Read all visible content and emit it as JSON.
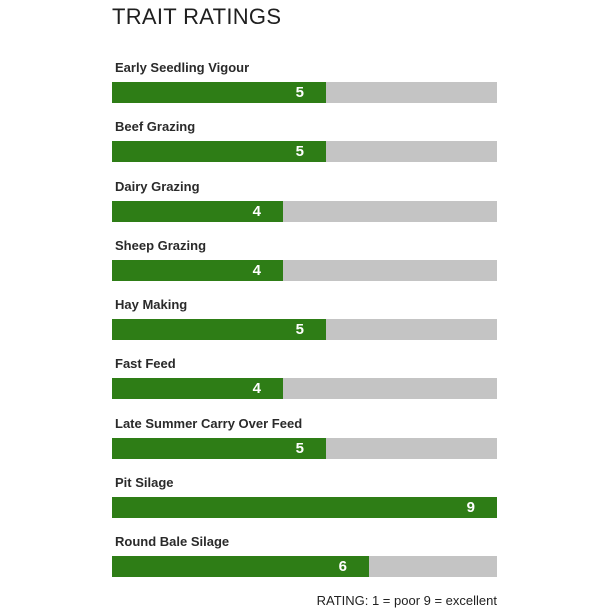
{
  "chart_data": {
    "type": "bar",
    "orientation": "horizontal",
    "title": "TRAIT RATINGS",
    "categories": [
      "Early Seedling Vigour",
      "Beef Grazing",
      "Dairy Grazing",
      "Sheep Grazing",
      "Hay Making",
      "Fast Feed",
      "Late Summer Carry Over Feed",
      "Pit Silage",
      "Round Bale Silage"
    ],
    "values": [
      5,
      5,
      4,
      4,
      5,
      4,
      5,
      9,
      6
    ],
    "xlim": [
      0,
      9
    ],
    "grid": false,
    "colors": {
      "fill": "#2e7d16",
      "track": "#c4c4c4",
      "value_text": "#ffffff"
    },
    "legend_text": "RATING: 1 = poor 9 = excellent"
  }
}
